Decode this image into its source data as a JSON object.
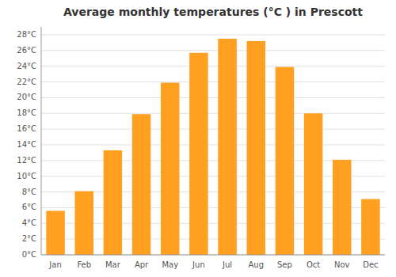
{
  "chart_data": {
    "type": "bar",
    "title": "Average monthly temperatures (°C ) in Prescott",
    "categories": [
      "Jan",
      "Feb",
      "Mar",
      "Apr",
      "May",
      "Jun",
      "Jul",
      "Aug",
      "Sep",
      "Oct",
      "Nov",
      "Dec"
    ],
    "values": [
      5.6,
      8.1,
      13.3,
      17.9,
      21.9,
      25.7,
      27.5,
      27.2,
      23.9,
      18.0,
      12.1,
      7.1
    ],
    "color": "#FFA020",
    "ylim": [
      0,
      29
    ],
    "yticks": [
      {
        "value": 0,
        "label": "0°C"
      },
      {
        "value": 2,
        "label": "2°C"
      },
      {
        "value": 4,
        "label": "4°C"
      },
      {
        "value": 6,
        "label": "6°C"
      },
      {
        "value": 8,
        "label": "8°C"
      },
      {
        "value": 10,
        "label": "10°C"
      },
      {
        "value": 12,
        "label": "12°C"
      },
      {
        "value": 14,
        "label": "14°C"
      },
      {
        "value": 16,
        "label": "16°C"
      },
      {
        "value": 18,
        "label": "18°C"
      },
      {
        "value": 20,
        "label": "20°C"
      },
      {
        "value": 22,
        "label": "22°C"
      },
      {
        "value": 24,
        "label": "24°C"
      },
      {
        "value": 26,
        "label": "26°C"
      },
      {
        "value": 28,
        "label": "28°C"
      }
    ],
    "grid": true
  }
}
